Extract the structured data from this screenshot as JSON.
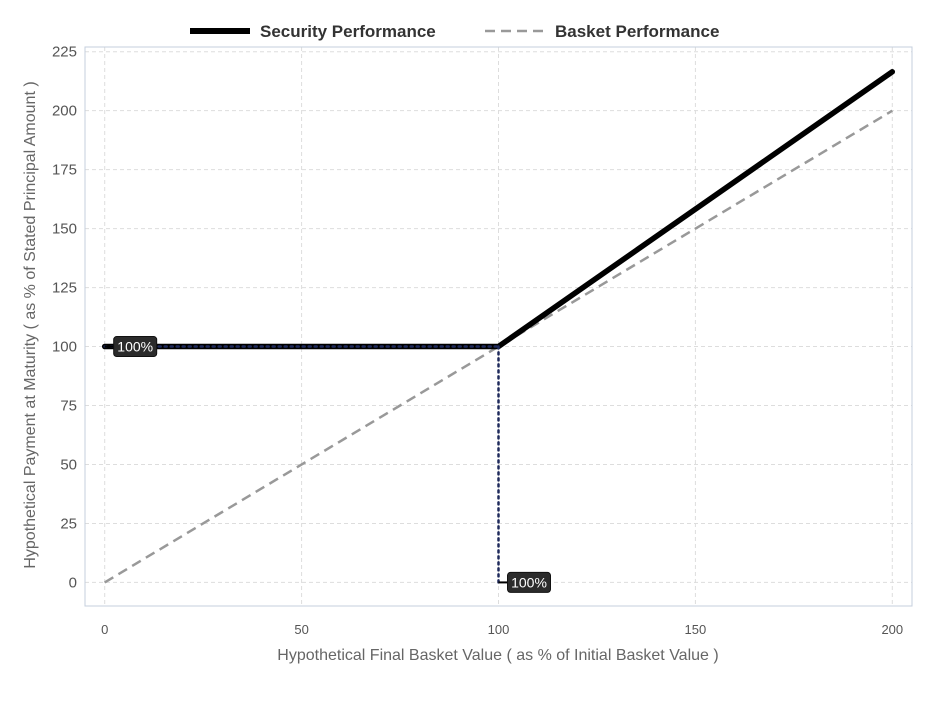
{
  "chart_data": {
    "type": "line",
    "title": "",
    "xlabel": "Hypothetical Final Basket Value ( as % of Initial Basket Value )",
    "ylabel": "Hypothetical Payment at Maturity ( as % of Stated Principal Amount )",
    "xlim": [
      -5,
      205
    ],
    "ylim": [
      -10,
      227
    ],
    "xticks": [
      0,
      50,
      100,
      150,
      200
    ],
    "yticks": [
      0,
      25,
      50,
      75,
      100,
      125,
      150,
      175,
      200,
      225
    ],
    "grid": true,
    "legend_position": "top-center",
    "series": [
      {
        "name": "Security Performance",
        "color": "#000000",
        "style": "solid",
        "x": [
          0,
          100,
          200
        ],
        "y": [
          100,
          100,
          216.5
        ]
      },
      {
        "name": "Basket Performance",
        "color": "#999999",
        "style": "dashed",
        "x": [
          0,
          200
        ],
        "y": [
          0,
          200
        ]
      }
    ],
    "reference_lines": [
      {
        "x": [
          0,
          100
        ],
        "y": [
          100,
          100
        ],
        "color": "#1f2a5c",
        "style": "dotted"
      },
      {
        "x": [
          100,
          100
        ],
        "y": [
          0,
          100
        ],
        "color": "#1f2a5c",
        "style": "dotted"
      }
    ],
    "annotations": [
      {
        "text": "100%",
        "x": 0,
        "y": 100
      },
      {
        "text": "100%",
        "x": 100,
        "y": 0
      }
    ]
  }
}
